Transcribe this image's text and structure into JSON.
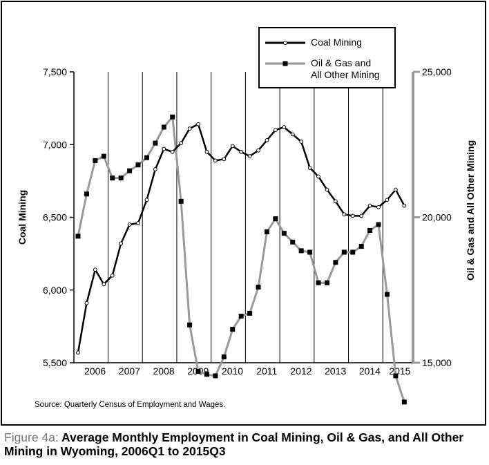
{
  "caption": {
    "label": "Figure 4a:",
    "text": "Average Monthly Employment in Coal Mining, Oil & Gas, and All Other Mining in Wyoming, 2006Q1 to 2015Q3"
  },
  "source": "Source: Quarterly Census of Employment and Wages.",
  "legend": {
    "coal": "Coal Mining",
    "oil_line1": "Oil & Gas and",
    "oil_line2": "All Other Mining"
  },
  "colors": {
    "coal": "#000000",
    "oil": "#999999",
    "oil_marker": "#000000"
  },
  "chart_data": {
    "type": "line",
    "x_categories": [
      "2006",
      "2007",
      "2008",
      "2009",
      "2010",
      "2011",
      "2012",
      "2013",
      "2014",
      "2015"
    ],
    "quarters": [
      "2006Q1",
      "2006Q2",
      "2006Q3",
      "2006Q4",
      "2007Q1",
      "2007Q2",
      "2007Q3",
      "2007Q4",
      "2008Q1",
      "2008Q2",
      "2008Q3",
      "2008Q4",
      "2009Q1",
      "2009Q2",
      "2009Q3",
      "2009Q4",
      "2010Q1",
      "2010Q2",
      "2010Q3",
      "2010Q4",
      "2011Q1",
      "2011Q2",
      "2011Q3",
      "2011Q4",
      "2012Q1",
      "2012Q2",
      "2012Q3",
      "2012Q4",
      "2013Q1",
      "2013Q2",
      "2013Q3",
      "2013Q4",
      "2014Q1",
      "2014Q2",
      "2014Q3",
      "2014Q4",
      "2015Q1",
      "2015Q2",
      "2015Q3"
    ],
    "left_axis": {
      "label": "Coal Mining",
      "min": 5500,
      "max": 7500,
      "ticks": [
        "5,500",
        "6,000",
        "6,500",
        "7,000",
        "7,500"
      ]
    },
    "right_axis": {
      "label": "Oil & Gas and All Other Mining",
      "min": 15000,
      "max": 25000,
      "ticks": [
        "15,000",
        "20,000",
        "25,000"
      ]
    },
    "grid": "vertical year separators",
    "legend_position": "top-right",
    "series": [
      {
        "name": "Coal Mining",
        "axis": "left",
        "marker": "open-circle",
        "values": [
          5570,
          5910,
          6140,
          6040,
          6100,
          6320,
          6450,
          6460,
          6620,
          6830,
          6970,
          6950,
          7010,
          7110,
          7140,
          6950,
          6890,
          6900,
          6990,
          6950,
          6920,
          6960,
          7030,
          7100,
          7120,
          7070,
          7020,
          6840,
          6780,
          6690,
          6610,
          6520,
          6510,
          6510,
          6580,
          6570,
          6620,
          6690,
          6580
        ]
      },
      {
        "name": "Oil & Gas and All Other Mining",
        "axis": "right",
        "marker": "filled-square",
        "values": [
          19350,
          20800,
          21950,
          22100,
          21350,
          21350,
          21600,
          21800,
          22050,
          22550,
          23100,
          23450,
          20550,
          16300,
          14700,
          14600,
          14550,
          15200,
          16150,
          16600,
          16700,
          17600,
          19500,
          19950,
          19450,
          19150,
          18850,
          18800,
          17750,
          17750,
          18450,
          18800,
          18800,
          19000,
          19550,
          19750,
          17350,
          14550,
          13650
        ]
      }
    ]
  }
}
